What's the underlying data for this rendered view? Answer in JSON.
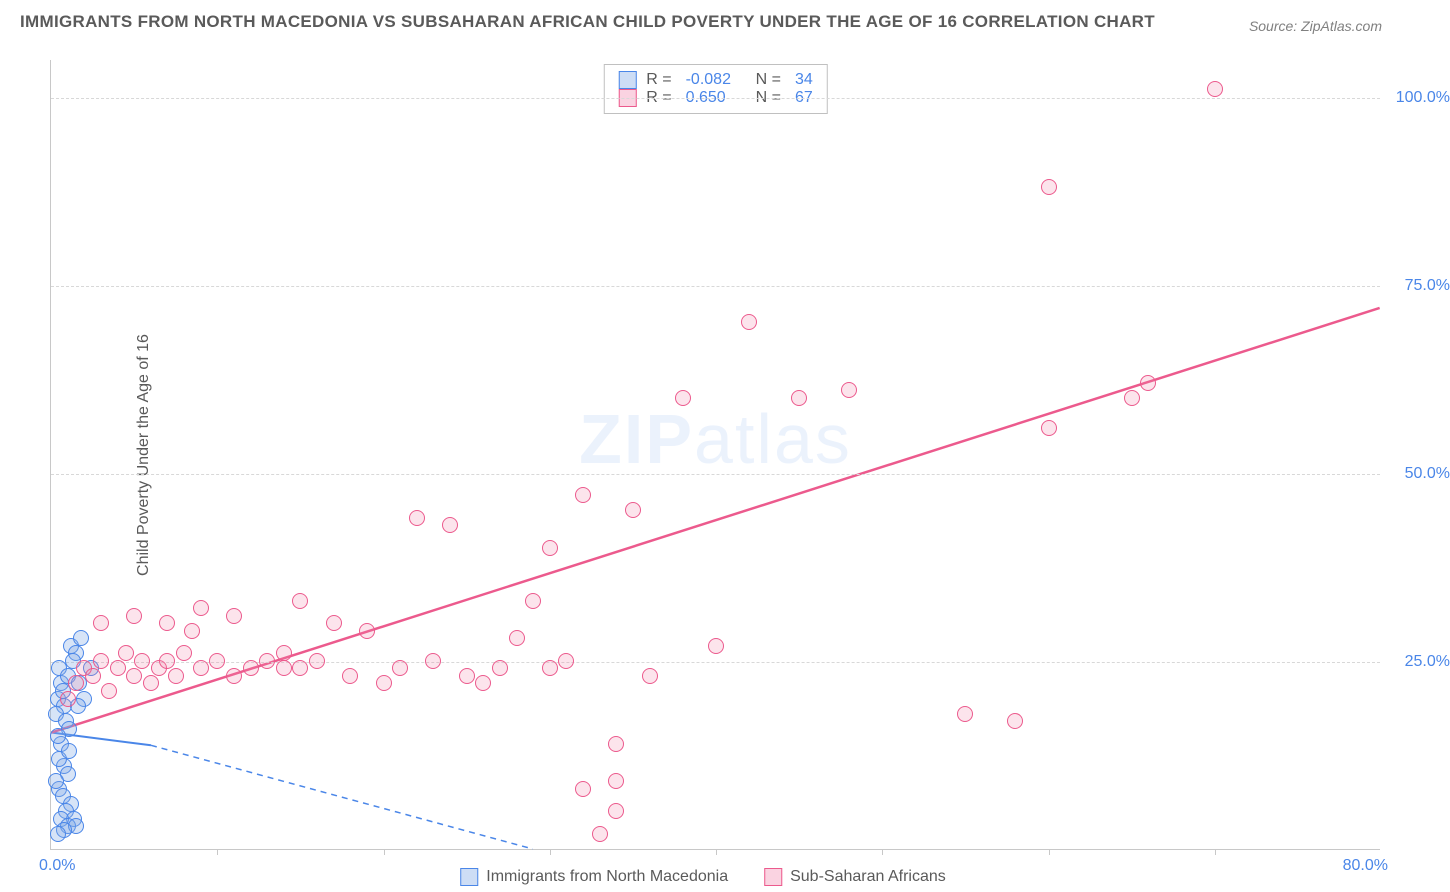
{
  "title": "IMMIGRANTS FROM NORTH MACEDONIA VS SUBSAHARAN AFRICAN CHILD POVERTY UNDER THE AGE OF 16 CORRELATION CHART",
  "source": "Source: ZipAtlas.com",
  "watermark": "ZIPatlas",
  "chart": {
    "type": "scatter",
    "y_label": "Child Poverty Under the Age of 16",
    "xlim": [
      0,
      80
    ],
    "ylim": [
      0,
      105
    ],
    "y_ticks": [
      25,
      50,
      75,
      100
    ],
    "y_tick_labels": [
      "25.0%",
      "50.0%",
      "75.0%",
      "100.0%"
    ],
    "x_tick_marks": [
      10,
      20,
      30,
      40,
      50,
      60,
      70
    ],
    "x_origin_label": "0.0%",
    "x_max_label": "80.0%",
    "grid_color": "#d8d8d8",
    "axis_color": "#c8c8c8",
    "background_color": "#ffffff",
    "marker_radius": 8,
    "series": [
      {
        "name": "Immigrants from North Macedonia",
        "color": "#4a86e8",
        "fill": "rgba(130,170,230,0.32)",
        "r": -0.082,
        "n": 34,
        "trend": {
          "x1": 0,
          "y1": 15.5,
          "x2": 6,
          "y2": 13.8,
          "dash_x2": 29,
          "dash_y2": 0,
          "stroke_width": 2
        },
        "points": [
          [
            0.4,
            20
          ],
          [
            0.6,
            22
          ],
          [
            0.8,
            19
          ],
          [
            0.5,
            24
          ],
          [
            1.2,
            27
          ],
          [
            1.5,
            26
          ],
          [
            0.7,
            21
          ],
          [
            1.0,
            23
          ],
          [
            1.3,
            25
          ],
          [
            1.8,
            28
          ],
          [
            0.3,
            18
          ],
          [
            0.9,
            17
          ],
          [
            1.1,
            16
          ],
          [
            0.6,
            14
          ],
          [
            0.4,
            15
          ],
          [
            2.0,
            20
          ],
          [
            2.4,
            24
          ],
          [
            1.6,
            19
          ],
          [
            0.8,
            11
          ],
          [
            1.0,
            10
          ],
          [
            0.5,
            8
          ],
          [
            0.7,
            7
          ],
          [
            1.2,
            6
          ],
          [
            0.9,
            5
          ],
          [
            1.4,
            4
          ],
          [
            0.6,
            4
          ],
          [
            1.0,
            3
          ],
          [
            1.5,
            3
          ],
          [
            0.8,
            2.5
          ],
          [
            0.4,
            2
          ],
          [
            0.3,
            9
          ],
          [
            0.5,
            12
          ],
          [
            1.1,
            13
          ],
          [
            1.7,
            22
          ]
        ]
      },
      {
        "name": "Sub-Saharan Africans",
        "color": "#ec5a8d",
        "fill": "rgba(240,130,170,0.22)",
        "r": 0.65,
        "n": 67,
        "trend": {
          "x1": 0,
          "y1": 15.5,
          "x2": 80,
          "y2": 72,
          "stroke_width": 2.5
        },
        "points": [
          [
            1,
            20
          ],
          [
            1.5,
            22
          ],
          [
            2,
            24
          ],
          [
            2.5,
            23
          ],
          [
            3,
            25
          ],
          [
            3.5,
            21
          ],
          [
            4,
            24
          ],
          [
            4.5,
            26
          ],
          [
            5,
            23
          ],
          [
            5.5,
            25
          ],
          [
            6,
            22
          ],
          [
            6.5,
            24
          ],
          [
            7,
            25
          ],
          [
            7.5,
            23
          ],
          [
            8,
            26
          ],
          [
            8.5,
            29
          ],
          [
            9,
            24
          ],
          [
            10,
            25
          ],
          [
            11,
            23
          ],
          [
            12,
            24
          ],
          [
            3,
            30
          ],
          [
            5,
            31
          ],
          [
            7,
            30
          ],
          [
            9,
            32
          ],
          [
            11,
            31
          ],
          [
            14,
            26
          ],
          [
            15,
            24
          ],
          [
            16,
            25
          ],
          [
            18,
            23
          ],
          [
            20,
            22
          ],
          [
            15,
            33
          ],
          [
            17,
            30
          ],
          [
            19,
            29
          ],
          [
            21,
            24
          ],
          [
            23,
            25
          ],
          [
            25,
            23
          ],
          [
            22,
            44
          ],
          [
            24,
            43
          ],
          [
            26,
            22
          ],
          [
            28,
            28
          ],
          [
            29,
            33
          ],
          [
            30,
            24
          ],
          [
            30,
            40
          ],
          [
            32,
            8
          ],
          [
            32,
            47
          ],
          [
            33,
            2
          ],
          [
            34,
            5
          ],
          [
            35,
            45
          ],
          [
            36,
            23
          ],
          [
            38,
            60
          ],
          [
            40,
            27
          ],
          [
            42,
            70
          ],
          [
            45,
            60
          ],
          [
            48,
            61
          ],
          [
            34,
            14
          ],
          [
            34,
            9
          ],
          [
            55,
            18
          ],
          [
            60,
            56
          ],
          [
            60,
            88
          ],
          [
            65,
            60
          ],
          [
            66,
            62
          ],
          [
            70,
            101
          ],
          [
            58,
            17
          ],
          [
            13,
            25
          ],
          [
            14,
            24
          ],
          [
            27,
            24
          ],
          [
            31,
            25
          ]
        ]
      }
    ],
    "legend_top": [
      {
        "swatch": "blue",
        "r": "-0.082",
        "n": "34"
      },
      {
        "swatch": "pink",
        "r": "0.650",
        "n": "67"
      }
    ],
    "legend_bottom": [
      {
        "swatch": "blue",
        "label": "Immigrants from North Macedonia"
      },
      {
        "swatch": "pink",
        "label": "Sub-Saharan Africans"
      }
    ]
  }
}
